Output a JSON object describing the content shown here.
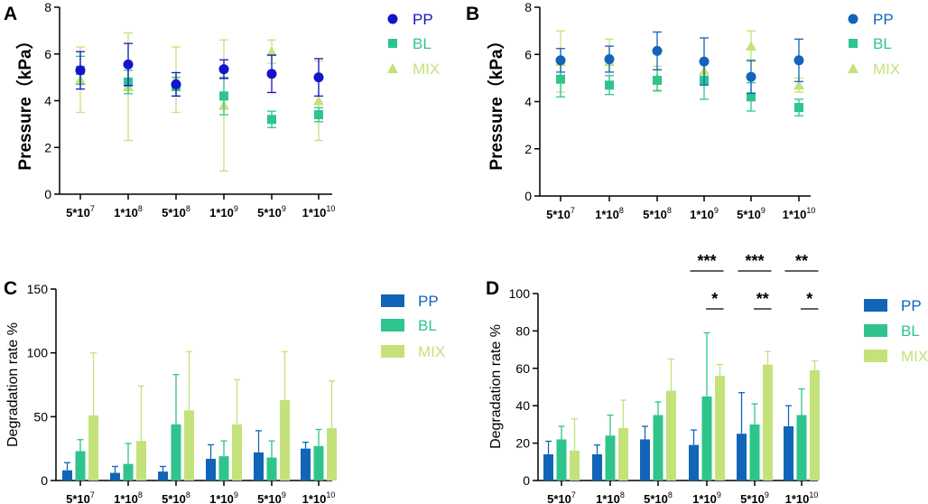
{
  "colors": {
    "PP": "#1264b8",
    "BL": "#2fc48c",
    "MIX": "#c3e27a",
    "PP_A": "#1414c8",
    "axis": "#000000"
  },
  "chart_data": [
    {
      "panel": "A",
      "type": "scatter",
      "ylabel": "Pressure（kPa）",
      "ylim": [
        0,
        8
      ],
      "yticks": [
        "0",
        "2",
        "4",
        "6",
        "8"
      ],
      "categories": [
        {
          "base": "5*10",
          "exp": "7"
        },
        {
          "base": "1*10",
          "exp": "8"
        },
        {
          "base": "5*10",
          "exp": "8"
        },
        {
          "base": "1*10",
          "exp": "9"
        },
        {
          "base": "5*10",
          "exp": "9"
        },
        {
          "base": "1*10",
          "exp": "10"
        }
      ],
      "series": [
        {
          "name": "PP",
          "marker": "circle",
          "values": [
            5.3,
            5.55,
            4.7,
            5.35,
            5.15,
            5.0
          ],
          "err": [
            0.8,
            0.9,
            0.5,
            0.4,
            0.8,
            0.8
          ]
        },
        {
          "name": "BL",
          "marker": "square",
          "values": [
            5.3,
            4.8,
            4.6,
            4.2,
            3.2,
            3.4
          ],
          "err": [
            0.6,
            0.5,
            0.4,
            0.8,
            0.35,
            0.3
          ]
        },
        {
          "name": "MIX",
          "marker": "triangle",
          "values": [
            4.9,
            4.6,
            4.9,
            3.8,
            6.1,
            4.0
          ],
          "err": [
            1.4,
            2.3,
            1.4,
            2.8,
            0.5,
            1.7
          ]
        }
      ],
      "legend": [
        "PP",
        "BL",
        "MIX"
      ]
    },
    {
      "panel": "B",
      "type": "scatter",
      "ylabel": "Pressure（kPa）",
      "ylim": [
        0,
        8
      ],
      "yticks": [
        "0",
        "2",
        "4",
        "6",
        "8"
      ],
      "categories": [
        {
          "base": "5*10",
          "exp": "7"
        },
        {
          "base": "1*10",
          "exp": "8"
        },
        {
          "base": "5*10",
          "exp": "8"
        },
        {
          "base": "1*10",
          "exp": "9"
        },
        {
          "base": "5*10",
          "exp": "9"
        },
        {
          "base": "1*10",
          "exp": "10"
        }
      ],
      "series": [
        {
          "name": "PP",
          "marker": "circle",
          "values": [
            5.75,
            5.8,
            6.15,
            5.7,
            5.05,
            5.75
          ],
          "err": [
            0.5,
            0.55,
            0.8,
            1.0,
            0.7,
            0.9
          ]
        },
        {
          "name": "BL",
          "marker": "square",
          "values": [
            4.95,
            4.7,
            4.9,
            4.9,
            4.2,
            3.75
          ],
          "err": [
            0.75,
            0.4,
            0.45,
            0.8,
            0.6,
            0.35
          ]
        },
        {
          "name": "MIX",
          "marker": "triangle",
          "values": [
            5.7,
            5.7,
            5.0,
            5.3,
            6.35,
            4.7
          ],
          "err": [
            1.3,
            0.95,
            0.5,
            0.5,
            0.65,
            0.3
          ]
        }
      ],
      "legend": [
        "PP",
        "BL",
        "MIX"
      ]
    },
    {
      "panel": "C",
      "type": "bar",
      "ylabel": "Degradation rate %",
      "ylim": [
        0,
        150
      ],
      "yticks": [
        "0",
        "50",
        "100",
        "150"
      ],
      "categories": [
        {
          "base": "5*10",
          "exp": "7"
        },
        {
          "base": "1*10",
          "exp": "8"
        },
        {
          "base": "5*10",
          "exp": "8"
        },
        {
          "base": "1*10",
          "exp": "9"
        },
        {
          "base": "5*10",
          "exp": "9"
        },
        {
          "base": "1*10",
          "exp": "10"
        }
      ],
      "series": [
        {
          "name": "PP",
          "values": [
            8,
            6,
            7,
            17,
            22,
            25
          ],
          "err": [
            6,
            5,
            4,
            11,
            17,
            5
          ]
        },
        {
          "name": "BL",
          "values": [
            23,
            13,
            44,
            19,
            18,
            27
          ],
          "err": [
            9,
            16,
            39,
            12,
            13,
            13
          ]
        },
        {
          "name": "MIX",
          "values": [
            51,
            31,
            55,
            44,
            63,
            41
          ],
          "err": [
            49,
            43,
            46,
            35,
            38,
            37
          ]
        }
      ],
      "legend": [
        "PP",
        "BL",
        "MIX"
      ]
    },
    {
      "panel": "D",
      "type": "bar",
      "ylabel": "Degradation rate %",
      "ylim": [
        0,
        100
      ],
      "yticks": [
        "0",
        "20",
        "40",
        "60",
        "80",
        "100"
      ],
      "categories": [
        {
          "base": "5*10",
          "exp": "7"
        },
        {
          "base": "1*10",
          "exp": "8"
        },
        {
          "base": "5*10",
          "exp": "8"
        },
        {
          "base": "1*10",
          "exp": "9"
        },
        {
          "base": "5*10",
          "exp": "9"
        },
        {
          "base": "1*10",
          "exp": "10"
        }
      ],
      "series": [
        {
          "name": "PP",
          "values": [
            14,
            14,
            22,
            19,
            25,
            29
          ],
          "err": [
            7,
            5,
            7,
            8,
            22,
            11
          ]
        },
        {
          "name": "BL",
          "values": [
            22,
            24,
            35,
            45,
            30,
            35
          ],
          "err": [
            7,
            11,
            7,
            34,
            11,
            14
          ]
        },
        {
          "name": "MIX",
          "values": [
            16,
            28,
            48,
            56,
            62,
            59
          ],
          "err": [
            17,
            15,
            17,
            6,
            7,
            5
          ]
        }
      ],
      "legend": [
        "PP",
        "BL",
        "MIX"
      ],
      "significance": [
        {
          "category": 3,
          "pair": "PP-MIX",
          "label": "***"
        },
        {
          "category": 3,
          "pair": "BL-MIX",
          "label": "*"
        },
        {
          "category": 4,
          "pair": "PP-MIX",
          "label": "***"
        },
        {
          "category": 4,
          "pair": "BL-MIX",
          "label": "**"
        },
        {
          "category": 5,
          "pair": "PP-MIX",
          "label": "**"
        },
        {
          "category": 5,
          "pair": "BL-MIX",
          "label": "*"
        }
      ]
    }
  ]
}
